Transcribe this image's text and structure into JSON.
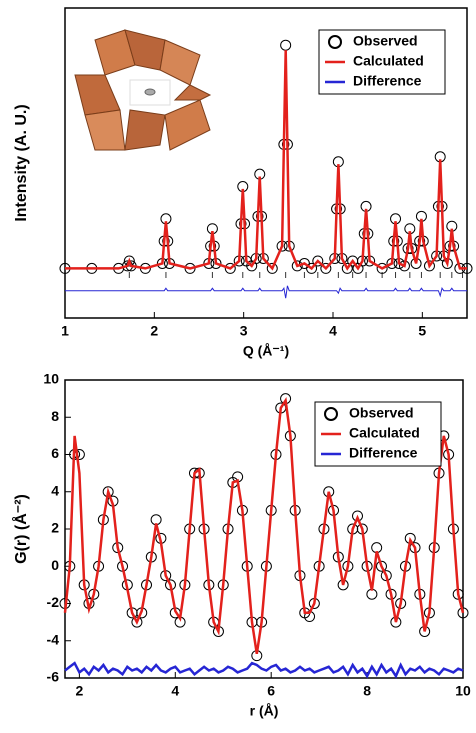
{
  "chart_data": [
    {
      "type": "line",
      "xlabel": "Q (Å⁻¹)",
      "ylabel": "Intensity (A. U.)",
      "xlim": [
        1,
        5.5
      ],
      "ylim": [
        -20,
        105
      ],
      "xticks": [
        1,
        2,
        3,
        4,
        5
      ],
      "legend": "upper right",
      "x": [
        1.0,
        1.3,
        1.6,
        1.7,
        1.72,
        1.74,
        1.9,
        2.09,
        2.11,
        2.13,
        2.15,
        2.17,
        2.4,
        2.61,
        2.63,
        2.65,
        2.67,
        2.69,
        2.85,
        2.95,
        2.97,
        2.99,
        3.01,
        3.03,
        3.09,
        3.14,
        3.16,
        3.18,
        3.2,
        3.22,
        3.32,
        3.43,
        3.45,
        3.47,
        3.49,
        3.51,
        3.6,
        3.68,
        3.76,
        3.83,
        3.92,
        4.02,
        4.04,
        4.06,
        4.08,
        4.1,
        4.16,
        4.22,
        4.28,
        4.33,
        4.35,
        4.37,
        4.39,
        4.41,
        4.55,
        4.66,
        4.68,
        4.7,
        4.72,
        4.74,
        4.8,
        4.84,
        4.86,
        4.88,
        4.93,
        4.97,
        4.99,
        5.01,
        5.08,
        5.16,
        5.18,
        5.2,
        5.22,
        5.24,
        5.28,
        5.31,
        5.33,
        5.35,
        5.42,
        5.5
      ],
      "reflections": [
        1.72,
        2.13,
        2.65,
        2.99,
        3.18,
        3.47,
        3.68,
        3.83,
        4.06,
        4.22,
        4.37,
        4.55,
        4.7,
        4.86,
        4.99,
        5.2,
        5.33,
        5.45
      ],
      "series": [
        {
          "name": "Observed",
          "color": "#000000",
          "style": "markers",
          "values": [
            0,
            0,
            0,
            1,
            3,
            1,
            0,
            2,
            11,
            20,
            11,
            2,
            0,
            2,
            9,
            16,
            9,
            2,
            0,
            3,
            18,
            33,
            18,
            3,
            1,
            4,
            21,
            38,
            21,
            4,
            0,
            9,
            50,
            90,
            50,
            9,
            1,
            2,
            0,
            3,
            0,
            4,
            24,
            43,
            24,
            4,
            0,
            3,
            0,
            3,
            14,
            25,
            14,
            3,
            0,
            2,
            11,
            20,
            11,
            2,
            1,
            8,
            16,
            8,
            2,
            11,
            21,
            11,
            1,
            5,
            25,
            45,
            25,
            5,
            2,
            9,
            17,
            9,
            0,
            0
          ]
        },
        {
          "name": "Calculated",
          "color": "#e3211c",
          "style": "line",
          "values": [
            0,
            0,
            0,
            1,
            3,
            1,
            0,
            2,
            11,
            19,
            11,
            2,
            0,
            2,
            9,
            15,
            9,
            2,
            0,
            3,
            18,
            32,
            18,
            3,
            1,
            4,
            21,
            37,
            21,
            4,
            0,
            9,
            50,
            88,
            50,
            9,
            1,
            2,
            0,
            3,
            0,
            4,
            24,
            42,
            24,
            4,
            0,
            3,
            0,
            3,
            14,
            24,
            14,
            3,
            0,
            2,
            11,
            19,
            11,
            2,
            1,
            8,
            15,
            8,
            2,
            11,
            20,
            11,
            1,
            5,
            25,
            44,
            25,
            5,
            2,
            9,
            16,
            9,
            0,
            0
          ]
        },
        {
          "name": "Difference",
          "color": "#2626d4",
          "style": "thin",
          "values": [
            -9,
            -9,
            -9,
            -9,
            -9,
            -9,
            -9,
            -9,
            -9,
            -8,
            -9,
            -9,
            -9,
            -9,
            -9,
            -8,
            -9,
            -9,
            -9,
            -9,
            -9,
            -8,
            -9,
            -9,
            -9,
            -9,
            -9,
            -8,
            -9,
            -9,
            -9,
            -9,
            -8,
            -12,
            -7,
            -9,
            -9,
            -9,
            -9,
            -9,
            -9,
            -9,
            -9,
            -10,
            -8,
            -9,
            -9,
            -9,
            -9,
            -9,
            -9,
            -8,
            -9,
            -9,
            -9,
            -9,
            -9,
            -8,
            -9,
            -9,
            -9,
            -9,
            -8,
            -9,
            -9,
            -9,
            -8,
            -9,
            -9,
            -9,
            -9,
            -11,
            -8,
            -9,
            -9,
            -9,
            -8,
            -9,
            -9,
            -9
          ]
        }
      ]
    },
    {
      "type": "line",
      "xlabel": "r (Å)",
      "ylabel": "G(r) (Å⁻²)",
      "xlim": [
        1.7,
        10
      ],
      "ylim": [
        -6,
        10
      ],
      "xticks": [
        2,
        4,
        6,
        8,
        10
      ],
      "yticks": [
        -6,
        -4,
        -2,
        0,
        2,
        4,
        6,
        8,
        10
      ],
      "legend": "upper right",
      "x": [
        1.7,
        1.8,
        1.9,
        2.0,
        2.1,
        2.2,
        2.3,
        2.4,
        2.5,
        2.6,
        2.7,
        2.8,
        2.9,
        3.0,
        3.1,
        3.2,
        3.3,
        3.4,
        3.5,
        3.6,
        3.7,
        3.8,
        3.9,
        4.0,
        4.1,
        4.2,
        4.3,
        4.4,
        4.5,
        4.6,
        4.7,
        4.8,
        4.9,
        5.0,
        5.1,
        5.2,
        5.3,
        5.4,
        5.5,
        5.6,
        5.7,
        5.8,
        5.9,
        6.0,
        6.1,
        6.2,
        6.3,
        6.4,
        6.5,
        6.6,
        6.7,
        6.8,
        6.9,
        7.0,
        7.1,
        7.2,
        7.3,
        7.4,
        7.5,
        7.6,
        7.7,
        7.8,
        7.9,
        8.0,
        8.1,
        8.2,
        8.3,
        8.4,
        8.5,
        8.6,
        8.7,
        8.8,
        8.9,
        9.0,
        9.1,
        9.2,
        9.3,
        9.4,
        9.5,
        9.6,
        9.7,
        9.8,
        9.9,
        10.0
      ],
      "series": [
        {
          "name": "Observed",
          "color": "#000000",
          "style": "markers",
          "values": [
            -2,
            0,
            6,
            6,
            -1,
            -2,
            -1.5,
            0,
            2.5,
            4,
            3.5,
            1,
            0,
            -1,
            -2.5,
            -3,
            -2.5,
            -1,
            0.5,
            2.5,
            1.5,
            -0.5,
            -1,
            -2.5,
            -3,
            -1,
            2,
            5,
            5,
            2,
            -1,
            -3,
            -3.5,
            -1,
            2,
            4.5,
            4.8,
            3,
            0,
            -3,
            -4.8,
            -3,
            0,
            3,
            6,
            8.5,
            9,
            7,
            3,
            -0.5,
            -2.5,
            -2.7,
            -2,
            0,
            2,
            4,
            3,
            0.5,
            -1,
            0,
            2,
            2.7,
            2,
            0,
            -1.5,
            1,
            0,
            -0.5,
            -1.5,
            -3,
            -2,
            0,
            1.5,
            1,
            -1.5,
            -3.5,
            -2.5,
            1,
            5,
            7,
            6,
            2,
            -1.5,
            -2.5
          ]
        },
        {
          "name": "Calculated",
          "color": "#e3211c",
          "style": "line",
          "values": [
            -2.5,
            0,
            7,
            5,
            -1,
            -2.3,
            -1.5,
            0,
            2.5,
            4,
            3.3,
            1,
            0,
            -1.2,
            -2.5,
            -3,
            -2.4,
            -1,
            0.5,
            2.3,
            1.3,
            -0.5,
            -1,
            -2.4,
            -2.8,
            -1,
            2,
            5,
            5.2,
            2,
            -1,
            -3,
            -3.5,
            -1,
            2,
            4.5,
            4.6,
            3,
            0,
            -3,
            -4.7,
            -3,
            0,
            3,
            6,
            8.5,
            8.9,
            7,
            3,
            -0.5,
            -2.5,
            -2.5,
            -2,
            0,
            2,
            4,
            3,
            0.5,
            -1,
            0,
            2,
            2.6,
            2,
            0,
            -1.3,
            0.8,
            0,
            -0.5,
            -1.5,
            -3,
            -2,
            0,
            1.4,
            1,
            -1.5,
            -3.5,
            -2.5,
            1,
            5,
            7,
            6,
            2,
            -1.5,
            -2.5
          ]
        },
        {
          "name": "Difference",
          "color": "#2626d4",
          "style": "line",
          "values": [
            -5.6,
            -5.4,
            -5.2,
            -5.7,
            -5.5,
            -5.8,
            -5.4,
            -5.6,
            -5.3,
            -5.7,
            -5.5,
            -5.6,
            -5.8,
            -5.4,
            -5.6,
            -5.5,
            -5.7,
            -5.4,
            -5.6,
            -5.3,
            -5.6,
            -5.7,
            -5.5,
            -5.4,
            -5.7,
            -5.6,
            -5.5,
            -5.8,
            -5.6,
            -5.4,
            -5.6,
            -5.5,
            -5.7,
            -5.6,
            -5.4,
            -5.5,
            -5.7,
            -5.6,
            -5.5,
            -5.2,
            -5.3,
            -5.5,
            -5.6,
            -5.4,
            -5.3,
            -5.6,
            -5.5,
            -5.7,
            -5.6,
            -5.4,
            -5.6,
            -5.5,
            -5.7,
            -5.6,
            -5.5,
            -5.4,
            -5.7,
            -5.6,
            -5.4,
            -5.8,
            -5.3,
            -5.7,
            -5.5,
            -5.9,
            -5.4,
            -5.8,
            -5.3,
            -5.7,
            -5.5,
            -5.9,
            -5.3,
            -5.8,
            -5.5,
            -5.6,
            -5.4,
            -5.7,
            -5.5,
            -5.6,
            -5.8,
            -5.5,
            -5.6,
            -5.7,
            -5.5,
            -5.6
          ]
        }
      ]
    }
  ]
}
